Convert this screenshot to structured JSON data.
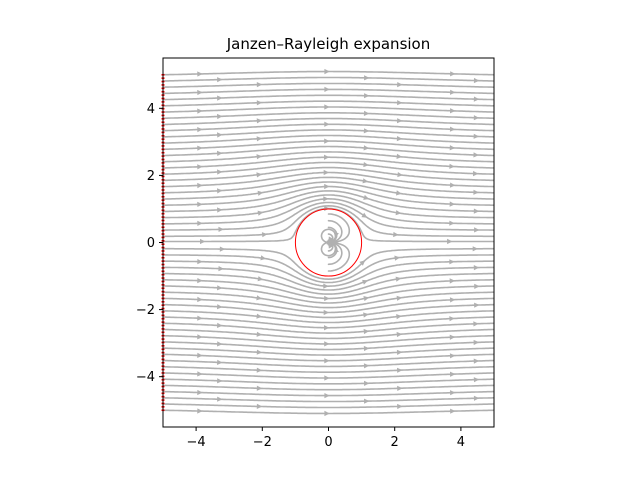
{
  "chart_data": {
    "type": "streamplot",
    "title": "Janzen–Rayleigh expansion",
    "xlabel": "",
    "ylabel": "",
    "xlim": [
      -5,
      5
    ],
    "ylim": [
      -5.5,
      5.5
    ],
    "xticks": [
      -4,
      -2,
      0,
      2,
      4
    ],
    "yticks": [
      -4,
      -2,
      0,
      2,
      4
    ],
    "xtick_labels": [
      "−4",
      "−2",
      "0",
      "2",
      "4"
    ],
    "ytick_labels": [
      "−4",
      "−2",
      "0",
      "2",
      "4"
    ],
    "grid": false,
    "legend": "none",
    "flow": {
      "model": "uniform flow past a circular cylinder",
      "free_stream_direction": "+x",
      "cylinder_center": [
        0,
        0
      ],
      "cylinder_radius": 1,
      "seed_x": -5,
      "seed_y_range": [
        -5,
        5
      ]
    },
    "colors": {
      "streamlines": "#b0b0b0",
      "cylinder_outline": "#ff0000",
      "seed_points": "#ff0000",
      "axes": "#000000"
    }
  }
}
